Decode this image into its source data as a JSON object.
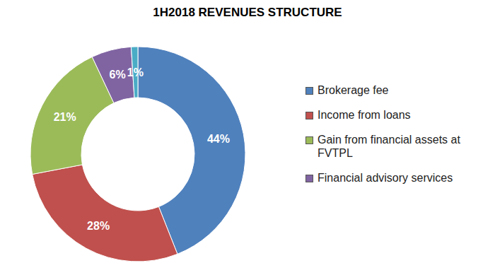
{
  "chart_data": {
    "type": "pie",
    "title": "1H2018 REVENUES STRUCTURE",
    "categories": [
      "Brokerage fee",
      "Income from loans",
      "Gain from financial assets at FVTPL",
      "Financial advisory services",
      null
    ],
    "values": [
      44,
      28,
      21,
      6,
      1
    ],
    "value_labels": [
      "44%",
      "28%",
      "21%",
      "6%",
      "1%"
    ],
    "colors": [
      "#4f81bd",
      "#c0504d",
      "#9bbb59",
      "#8064a2",
      "#4bacc6"
    ],
    "data_labels": true,
    "legend": "right"
  }
}
